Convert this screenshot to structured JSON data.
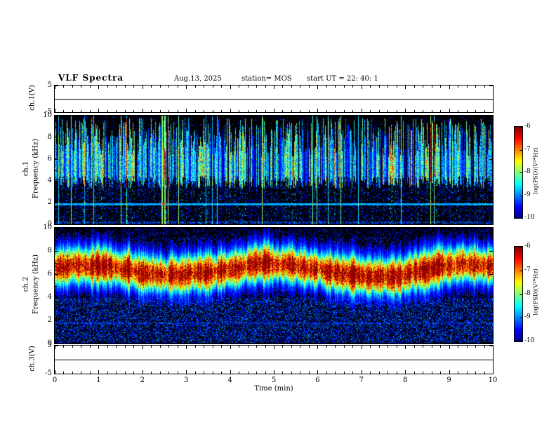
{
  "header": {
    "title": "VLF Spectra",
    "date": "Aug.13, 2025",
    "station": "station= MOS",
    "start_ut": "start UT =  22: 40: 1"
  },
  "xaxis": {
    "label": "Time (min)",
    "range": [
      0,
      10
    ],
    "ticks": [
      "0",
      "1",
      "2",
      "3",
      "4",
      "5",
      "6",
      "7",
      "8",
      "9",
      "10"
    ]
  },
  "chart_data": [
    {
      "type": "line",
      "name": "ch1_voltage",
      "ylabel": "ch.1(V)",
      "ylim": [
        -5,
        5
      ],
      "ytick_values": [
        5,
        -5
      ],
      "trace": "flat line at 0 V across full 10 min"
    },
    {
      "type": "heatmap",
      "name": "ch1_spectrogram",
      "ylabel_lines": [
        "ch.1",
        "Frequency (kHz)"
      ],
      "ylim": [
        0,
        10
      ],
      "ytick_values": [
        10,
        8,
        6,
        4,
        2,
        0
      ],
      "xlim": [
        0,
        10
      ],
      "colorbar": {
        "label": "log(PSD)(V²*Hz)",
        "tick_values": [
          -6,
          -7,
          -8,
          -9,
          -10
        ],
        "range": [
          -10,
          -6
        ]
      },
      "content": {
        "background": "black",
        "style": "dense ragged vertical green/cyan bursts between ~4 and ~9.8 kHz with black gaps",
        "horizontal_line_khz": 1.85,
        "low_band": "sparse blue speckle below ~3.5 kHz and near 0.2 kHz",
        "colormap": "jet"
      }
    },
    {
      "type": "heatmap",
      "name": "ch2_spectrogram",
      "ylabel_lines": [
        "ch.2",
        "Frequency (kHz)"
      ],
      "ylim": [
        0,
        10
      ],
      "ytick_values": [
        10,
        8,
        6,
        4,
        2,
        0
      ],
      "xlim": [
        0,
        10
      ],
      "colorbar": {
        "label": "log(PSD)(V²*Hz)",
        "tick_values": [
          -6,
          -7,
          -8,
          -9,
          -10
        ],
        "range": [
          -10,
          -6
        ]
      },
      "content": {
        "background": "black",
        "style": "continuous intense band, red/orange core near 6-7 kHz, yellow-green ring ~4.5-8.5 kHz, cyan fringe, blue speckle below 4 kHz",
        "band_center_khz": 6.5,
        "colormap": "jet"
      }
    },
    {
      "type": "line",
      "name": "ch3_voltage",
      "ylabel": "ch.3(V)",
      "ylim": [
        -5,
        5
      ],
      "ytick_values": [
        5,
        -5
      ],
      "trace": "flat line at 0 V across full 10 min"
    }
  ],
  "colors": {
    "axis": "#000000",
    "background": "#ffffff"
  }
}
